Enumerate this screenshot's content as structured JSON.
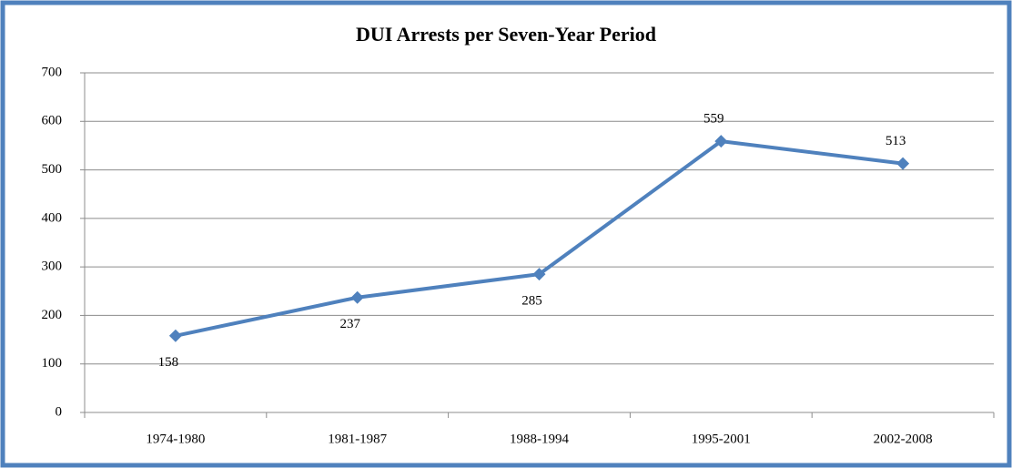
{
  "chart_data": {
    "type": "line",
    "title": "DUI Arrests per Seven-Year Period",
    "categories": [
      "1974-1980",
      "1981-1987",
      "1988-1994",
      "1995-2001",
      "2002-2008"
    ],
    "series": [
      {
        "name": "DUI Arrests",
        "color": "#4f81bd",
        "values": [
          158,
          237,
          285,
          559,
          513
        ]
      }
    ],
    "ylim": [
      0,
      700
    ],
    "yticks": [
      0,
      100,
      200,
      300,
      400,
      500,
      600,
      700
    ],
    "grid": true
  }
}
